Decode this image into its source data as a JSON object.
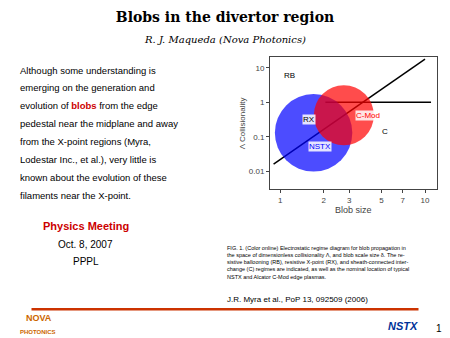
{
  "chart_data": {
    "type": "scatter",
    "title": "Blobs in the divertor region",
    "subtitle": "R. J. Maqueda (Nova Photonics)",
    "log": true,
    "grid": false,
    "xlabel": "Blob size",
    "ylabel": "Λ Collisionality",
    "xlim": [
      0.85,
      12
    ],
    "ylim": [
      0.003,
      20
    ],
    "xticks": [
      1,
      2,
      3,
      5,
      7,
      10
    ],
    "yticks": [
      0.01,
      0.1,
      1,
      10
    ],
    "series": [
      {
        "type": "line",
        "color": "#000000",
        "x": [
          0.9,
          10
        ],
        "values": [
          0.016,
          18
        ]
      },
      {
        "type": "line",
        "color": "#000000",
        "x": [
          2.05,
          11
        ],
        "values": [
          1.0,
          1.0
        ]
      },
      {
        "type": "scatter",
        "color": "blue",
        "x": [
          1.7
        ],
        "values": [
          0.13
        ],
        "size": [
          3000
        ]
      },
      {
        "type": "scatter",
        "color": "red",
        "x": [
          2.75
        ],
        "values": [
          0.42
        ],
        "size": [
          1800
        ]
      }
    ],
    "annotations": [
      {
        "text": "RB",
        "x": 1.05,
        "y": 6.0
      },
      {
        "text": "RX",
        "x": 1.42,
        "y": 0.32
      },
      {
        "text": "C",
        "x": 5.0,
        "y": 0.14
      },
      {
        "text": "C-Mod",
        "x": 3.3,
        "y": 0.42,
        "color": "red"
      },
      {
        "text": "NSTX",
        "x": 1.55,
        "y": 0.052,
        "color": "blue"
      }
    ],
    "body": [
      [
        {
          "text": "Although some understanding is"
        }
      ],
      [
        {
          "text": "emerging on the generation and"
        }
      ],
      [
        {
          "text": "evolution of "
        },
        {
          "text": "blobs",
          "color": "#cc0000"
        },
        {
          "text": " from the edge"
        }
      ],
      [
        {
          "text": "pedestal near the midplane and away"
        }
      ],
      [
        {
          "text": "from the X-point regions (Myra,"
        }
      ],
      [
        {
          "text": "Lodestar Inc., et al.), very little is"
        }
      ],
      [
        {
          "text": "known about the evolution of these"
        }
      ],
      [
        {
          "text": "filaments near the X-point."
        }
      ]
    ],
    "meeting": {
      "text": "Physics Meeting",
      "color": "#cc0000"
    },
    "date": "Oct. 8, 2007",
    "venue": "PPPL",
    "caption": [
      "FIG. 1. (Color online) Electrostatic regime diagram for blob propagation in",
      "the space of dimensionless collisionality Λ, and blob scale size δ. The re-",
      "sistive ballooning (RB), resistive X-point (RX), and sheath-connected inter-",
      "change (C) regimes are indicated, as well as the nominal location of typical",
      "NSTX and Alcator C-Mod edge plasmas."
    ],
    "citation": "J.R. Myra et al., PoP 13, 092509 (2006)",
    "rule_color": "#cc3300",
    "logo": [
      {
        "text": "NOVA",
        "color": "#cc6600"
      },
      {
        "text": "PHOTONICS",
        "color": "#cc6600"
      }
    ],
    "mark": {
      "text": "NSTX",
      "color": "#003399"
    },
    "page": "1"
  }
}
